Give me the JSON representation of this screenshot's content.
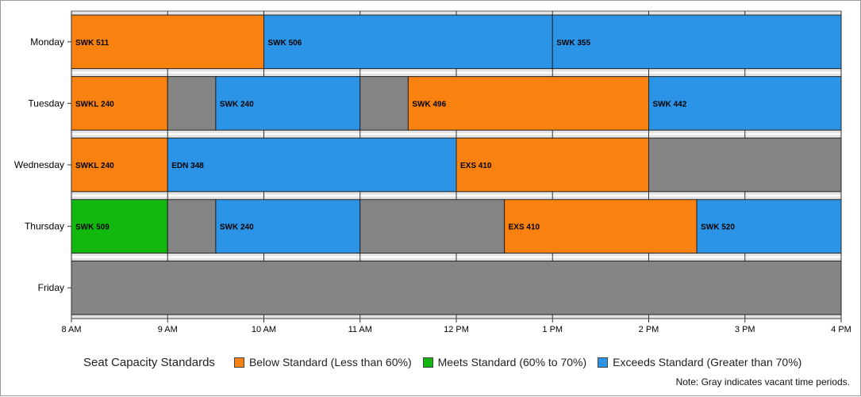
{
  "chart_data": {
    "type": "timeline",
    "x_axis": {
      "min_hour": 8,
      "max_hour": 16,
      "tick_labels": [
        "8 AM",
        "9 AM",
        "10 AM",
        "11 AM",
        "12 PM",
        "1 PM",
        "2 PM",
        "3 PM",
        "4 PM"
      ]
    },
    "categories": [
      "Monday",
      "Tuesday",
      "Wednesday",
      "Thursday",
      "Friday"
    ],
    "rows": [
      {
        "day": "Monday",
        "segments": [
          {
            "start": 8,
            "end": 10,
            "label": "SWK 511",
            "status": "below"
          },
          {
            "start": 10,
            "end": 13,
            "label": "SWK 506",
            "status": "exceeds"
          },
          {
            "start": 13,
            "end": 16,
            "label": "SWK 355",
            "status": "exceeds"
          }
        ]
      },
      {
        "day": "Tuesday",
        "segments": [
          {
            "start": 8,
            "end": 9,
            "label": "SWKL 240",
            "status": "below"
          },
          {
            "start": 9,
            "end": 9.5,
            "label": "",
            "status": "vacant"
          },
          {
            "start": 9.5,
            "end": 11,
            "label": "SWK 240",
            "status": "exceeds"
          },
          {
            "start": 11,
            "end": 11.5,
            "label": "",
            "status": "vacant"
          },
          {
            "start": 11.5,
            "end": 14,
            "label": "SWK 496",
            "status": "below"
          },
          {
            "start": 14,
            "end": 16,
            "label": "SWK 442",
            "status": "exceeds"
          }
        ]
      },
      {
        "day": "Wednesday",
        "segments": [
          {
            "start": 8,
            "end": 9,
            "label": "SWKL 240",
            "status": "below"
          },
          {
            "start": 9,
            "end": 12,
            "label": "EDN 348",
            "status": "exceeds"
          },
          {
            "start": 12,
            "end": 14,
            "label": "EXS 410",
            "status": "below"
          },
          {
            "start": 14,
            "end": 16,
            "label": "",
            "status": "vacant"
          }
        ]
      },
      {
        "day": "Thursday",
        "segments": [
          {
            "start": 8,
            "end": 9,
            "label": "SWK 509",
            "status": "meets"
          },
          {
            "start": 9,
            "end": 9.5,
            "label": "",
            "status": "vacant"
          },
          {
            "start": 9.5,
            "end": 11,
            "label": "SWK 240",
            "status": "exceeds"
          },
          {
            "start": 11,
            "end": 12.5,
            "label": "",
            "status": "vacant"
          },
          {
            "start": 12.5,
            "end": 14.5,
            "label": "EXS 410",
            "status": "below"
          },
          {
            "start": 14.5,
            "end": 16,
            "label": "SWK 520",
            "status": "exceeds"
          }
        ]
      },
      {
        "day": "Friday",
        "segments": [
          {
            "start": 8,
            "end": 16,
            "label": "",
            "status": "vacant"
          }
        ]
      }
    ],
    "colors": {
      "below": "#f98110",
      "meets": "#13b80e",
      "exceeds": "#2b94e6",
      "vacant": "#858585"
    },
    "legend": {
      "title": "Seat Capacity Standards",
      "items": [
        {
          "status": "below",
          "label": "Below Standard (Less than 60%)"
        },
        {
          "status": "meets",
          "label": "Meets Standard (60% to 70%)"
        },
        {
          "status": "exceeds",
          "label": "Exceeds Standard (Greater than 70%)"
        }
      ]
    },
    "note": "Note: Gray indicates vacant time periods.",
    "grid": true
  }
}
